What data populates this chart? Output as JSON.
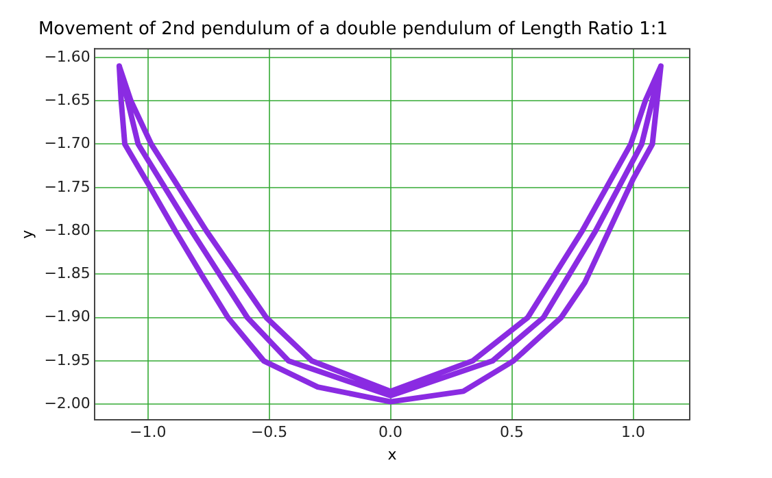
{
  "chart_data": {
    "type": "line",
    "title": "Movement of 2nd pendulum of a double pendulum of Length Ratio 1:1",
    "xlabel": "x",
    "ylabel": "y",
    "series": [
      {
        "color": "#8a2be2",
        "x": [
          -1.118,
          -1.11,
          -1.095,
          -0.99,
          -0.887,
          -0.78,
          -0.67,
          -0.522,
          -0.3,
          0,
          0.3,
          0.506,
          0.703,
          0.8,
          0.9,
          1.0,
          1.079,
          1.114,
          1.05,
          0.99,
          0.79,
          0.565,
          0.338,
          0,
          -0.324,
          -0.512,
          -0.759,
          -0.986,
          -1.07,
          -1.118,
          -1.04,
          -0.82,
          -0.59,
          -0.42,
          0,
          0.42,
          0.63,
          0.845,
          1.035,
          1.114
        ],
        "values": [
          -1.61,
          -1.65,
          -1.7,
          -1.75,
          -1.8,
          -1.85,
          -1.9,
          -1.95,
          -1.98,
          -1.997,
          -1.985,
          -1.95,
          -1.9,
          -1.86,
          -1.8,
          -1.74,
          -1.7,
          -1.61,
          -1.65,
          -1.7,
          -1.8,
          -1.9,
          -1.95,
          -1.985,
          -1.95,
          -1.9,
          -1.8,
          -1.7,
          -1.65,
          -1.61,
          -1.7,
          -1.8,
          -1.9,
          -1.95,
          -1.99,
          -1.95,
          -1.9,
          -1.8,
          -1.7,
          -1.61
        ]
      }
    ],
    "xlim": [
      -1.22,
      1.233
    ],
    "ylim": [
      -2.018,
      -1.59
    ],
    "xticks": [
      {
        "value": -1,
        "label": "−1.0"
      },
      {
        "value": -0.5,
        "label": "−0.5"
      },
      {
        "value": 0,
        "label": "0.0"
      },
      {
        "value": 0.5,
        "label": "0.5"
      },
      {
        "value": 1,
        "label": "1.0"
      }
    ],
    "yticks": [
      {
        "value": -2,
        "label": "−2.00"
      },
      {
        "value": -1.95,
        "label": "−1.95"
      },
      {
        "value": -1.9,
        "label": "−1.90"
      },
      {
        "value": -1.85,
        "label": "−1.85"
      },
      {
        "value": -1.8,
        "label": "−1.80"
      },
      {
        "value": -1.75,
        "label": "−1.75"
      },
      {
        "value": -1.7,
        "label": "−1.70"
      },
      {
        "value": -1.65,
        "label": "−1.65"
      },
      {
        "value": -1.6,
        "label": "−1.60"
      }
    ],
    "grid": true,
    "legend": false,
    "marker": "none",
    "line_style": "solid"
  }
}
